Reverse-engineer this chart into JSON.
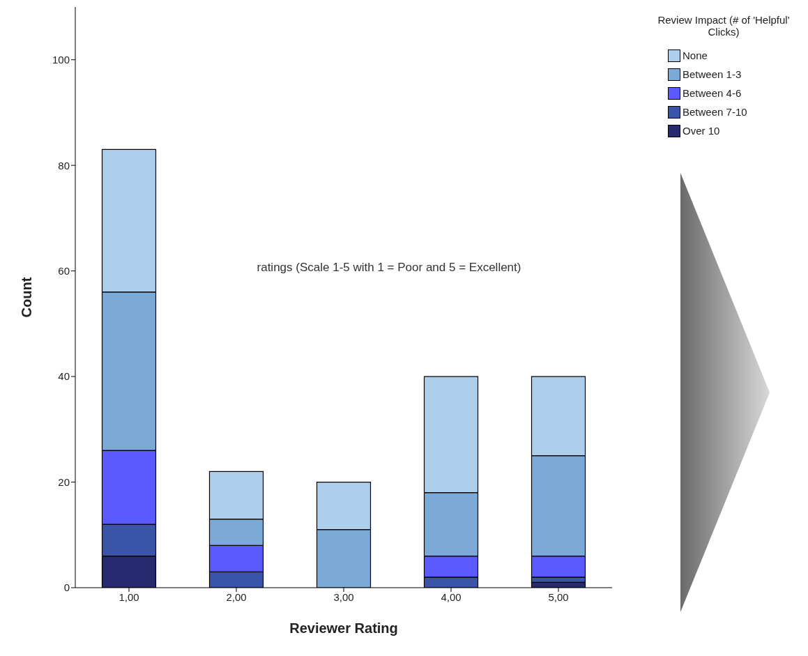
{
  "chart_data": {
    "type": "bar",
    "stacked": true,
    "xlabel": "Reviewer Rating",
    "ylabel": "Count",
    "legend_title": "Review Impact (# of 'Helpful' Clicks)",
    "legend": "top right",
    "grid": false,
    "categories": [
      "1,00",
      "2,00",
      "3,00",
      "4,00",
      "5,00"
    ],
    "ylim": [
      0,
      110
    ],
    "yticks": [
      0,
      20,
      40,
      60,
      80,
      100
    ],
    "annotations": [
      "ratings (Scale 1-5 with 1 = Poor and 5 = Excellent)"
    ],
    "series": [
      {
        "name": "Over 10",
        "color": "#262a6e",
        "values": [
          6,
          0,
          0,
          0,
          1
        ]
      },
      {
        "name": "Between 7-10",
        "color": "#3a55a8",
        "values": [
          6,
          3,
          0,
          2,
          1
        ]
      },
      {
        "name": "Between 4-6",
        "color": "#5a5aff",
        "values": [
          14,
          5,
          0,
          4,
          4
        ]
      },
      {
        "name": "Between 1-3",
        "color": "#7aaad5",
        "values": [
          30,
          5,
          11,
          12,
          19
        ]
      },
      {
        "name": "None",
        "color": "#aecfec",
        "values": [
          27,
          9,
          9,
          22,
          15
        ]
      }
    ]
  }
}
